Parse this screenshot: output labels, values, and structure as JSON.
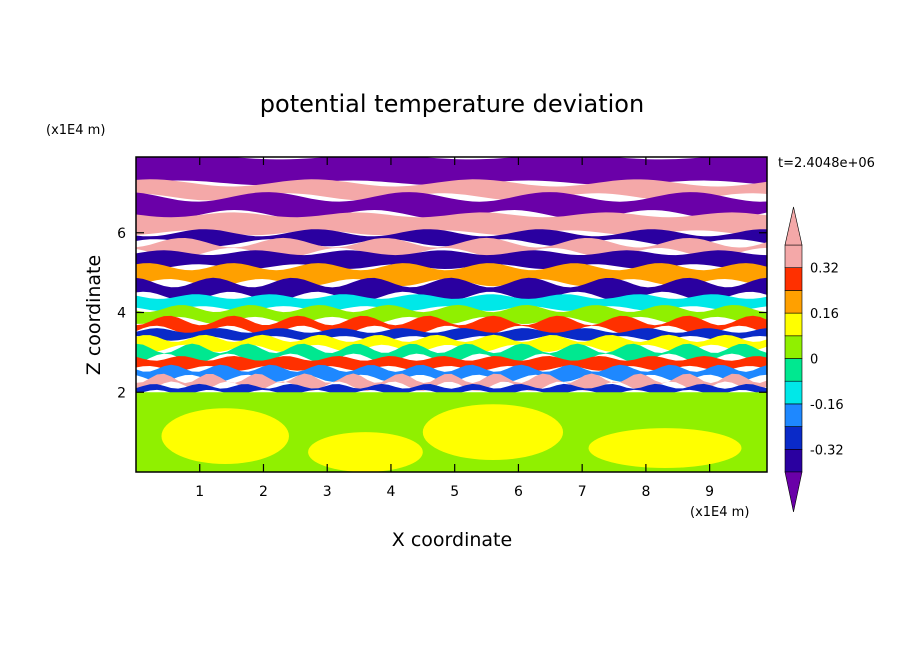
{
  "chart_data": {
    "type": "heatmap",
    "title": "potential temperature deviation",
    "xlabel": "X coordinate",
    "ylabel": "Z coordinate",
    "x_unit": "(x1E4 m)",
    "y_unit": "(x1E4 m)",
    "time_label": "t=2.4048e+06",
    "xlim": [
      0,
      9.9
    ],
    "ylim": [
      0,
      7.9
    ],
    "x_ticks": [
      1,
      2,
      3,
      4,
      5,
      6,
      7,
      8,
      9
    ],
    "y_ticks": [
      2,
      4,
      6
    ],
    "colorbar": {
      "levels": [
        -0.4,
        -0.32,
        -0.24,
        -0.16,
        -0.08,
        0,
        0.08,
        0.16,
        0.24,
        0.32,
        0.4
      ],
      "colors": [
        "#6a00a8",
        "#2a00a0",
        "#0a2ac8",
        "#1e88ff",
        "#00e8e8",
        "#00e890",
        "#90f000",
        "#ffff00",
        "#ffa000",
        "#ff3000",
        "#f4a8a8"
      ],
      "tick_labels": [
        {
          "value": 0.32,
          "text": "0.32"
        },
        {
          "value": 0.16,
          "text": "0.16"
        },
        {
          "value": 0,
          "text": "0"
        },
        {
          "value": -0.16,
          "text": "-0.16"
        },
        {
          "value": -0.32,
          "text": "-0.32"
        }
      ],
      "extend": "both"
    },
    "bands": [
      {
        "z_min": 7.25,
        "z_max": 7.9,
        "value": -0.45
      },
      {
        "z_min": 6.9,
        "z_max": 7.25,
        "value": 0.45
      },
      {
        "z_min": 6.45,
        "z_max": 6.9,
        "value": -0.45
      },
      {
        "z_min": 6.0,
        "z_max": 6.45,
        "value": 0.45
      },
      {
        "z_min": 5.75,
        "z_max": 6.0,
        "value": -0.4
      },
      {
        "z_min": 5.5,
        "z_max": 5.75,
        "value": 0.45
      },
      {
        "z_min": 5.15,
        "z_max": 5.5,
        "value": -0.35
      },
      {
        "z_min": 4.75,
        "z_max": 5.15,
        "value": 0.2
      },
      {
        "z_min": 4.4,
        "z_max": 4.75,
        "value": -0.35
      },
      {
        "z_min": 4.1,
        "z_max": 4.4,
        "value": -0.1
      },
      {
        "z_min": 3.8,
        "z_max": 4.1,
        "value": 0.05
      },
      {
        "z_min": 3.55,
        "z_max": 3.8,
        "value": 0.25
      },
      {
        "z_min": 3.35,
        "z_max": 3.55,
        "value": -0.25
      },
      {
        "z_min": 3.1,
        "z_max": 3.35,
        "value": 0.1
      },
      {
        "z_min": 2.85,
        "z_max": 3.1,
        "value": -0.05
      },
      {
        "z_min": 2.6,
        "z_max": 2.85,
        "value": 0.28
      },
      {
        "z_min": 2.35,
        "z_max": 2.6,
        "value": -0.2
      },
      {
        "z_min": 2.15,
        "z_max": 2.35,
        "value": 0.35
      },
      {
        "z_min": 2.0,
        "z_max": 2.15,
        "value": -0.3
      },
      {
        "z_min": 0.0,
        "z_max": 2.0,
        "value": 0.02
      }
    ],
    "lower_patches": [
      {
        "cx": 1.4,
        "cz": 0.9,
        "rx": 1.0,
        "rz": 0.7,
        "value": 0.1
      },
      {
        "cx": 3.6,
        "cz": 0.5,
        "rx": 0.9,
        "rz": 0.5,
        "value": 0.1
      },
      {
        "cx": 5.6,
        "cz": 1.0,
        "rx": 1.1,
        "rz": 0.7,
        "value": 0.1
      },
      {
        "cx": 8.3,
        "cz": 0.6,
        "rx": 1.2,
        "rz": 0.5,
        "value": 0.1
      }
    ]
  }
}
